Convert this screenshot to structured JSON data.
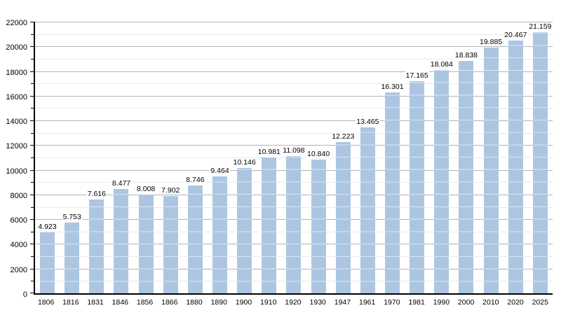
{
  "chart_data": {
    "type": "bar",
    "title": "",
    "xlabel": "",
    "ylabel": "",
    "categories": [
      "1806",
      "1816",
      "1831",
      "1846",
      "1856",
      "1866",
      "1880",
      "1890",
      "1900",
      "1910",
      "1920",
      "1930",
      "1947",
      "1961",
      "1970",
      "1981",
      "1990",
      "2000",
      "2010",
      "2020",
      "2025"
    ],
    "values": [
      4923,
      5753,
      7616,
      8477,
      8008,
      7902,
      8746,
      9464,
      10146,
      10981,
      11098,
      10840,
      12223,
      13465,
      16301,
      17165,
      18084,
      18838,
      19885,
      20467,
      21159
    ],
    "value_labels": [
      "4.923",
      "5.753",
      "7.616",
      "8.477",
      "8.008",
      "7.902",
      "8.746",
      "9.464",
      "10.146",
      "10.981",
      "11.098",
      "10.840",
      "12.223",
      "13.465",
      "16.301",
      "17.165",
      "18.084",
      "18.838",
      "19.885",
      "20.467",
      "21.159"
    ],
    "ylim": [
      0,
      22000
    ],
    "y_tick_step": 2000,
    "y_minor_step": 1000,
    "y_tick_labels": [
      "0",
      "2000",
      "4000",
      "6000",
      "8000",
      "10000",
      "12000",
      "14000",
      "16000",
      "18000",
      "20000",
      "22000"
    ],
    "grid": true,
    "legend": "none",
    "colors": {
      "bar": "#acc6e2",
      "grid_major": "#b4b4b4",
      "grid_minor": "#ece9e9",
      "axis": "#000000",
      "text": "#000000",
      "background": "#ffffff"
    }
  }
}
